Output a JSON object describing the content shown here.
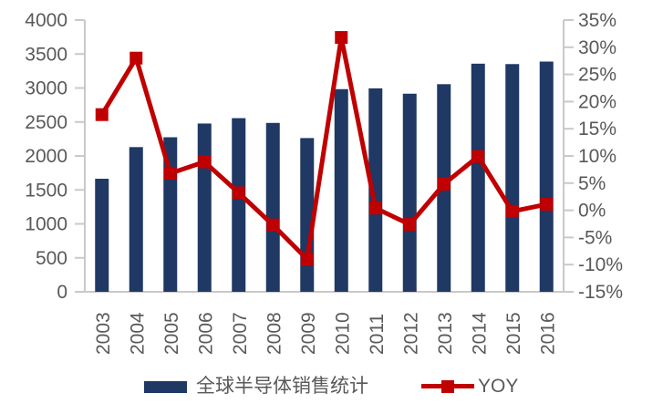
{
  "chart_data": {
    "type": "combo_bar_line",
    "title": "",
    "categories": [
      "2003",
      "2004",
      "2005",
      "2006",
      "2007",
      "2008",
      "2009",
      "2010",
      "2011",
      "2012",
      "2013",
      "2014",
      "2015",
      "2016"
    ],
    "series": [
      {
        "name": "全球半导体销售统计",
        "type": "bar",
        "axis": "left",
        "values": [
          1664,
          2130,
          2275,
          2477,
          2556,
          2486,
          2263,
          2983,
          2995,
          2916,
          3056,
          3358,
          3352,
          3389
        ],
        "color": "#1f3864"
      },
      {
        "name": "YOY",
        "type": "line",
        "axis": "right",
        "marker": "square",
        "values": [
          17.6,
          28.0,
          6.8,
          8.9,
          3.2,
          -2.7,
          -9.0,
          31.8,
          0.4,
          -2.6,
          4.8,
          9.9,
          -0.2,
          1.1
        ],
        "color": "#c00000"
      }
    ],
    "left_axis": {
      "min": 0,
      "max": 4000,
      "step": 500,
      "tick_labels": [
        "0",
        "500",
        "1000",
        "1500",
        "2000",
        "2500",
        "3000",
        "3500",
        "4000"
      ]
    },
    "right_axis": {
      "min": -15,
      "max": 35,
      "step": 5,
      "format": "percent",
      "tick_labels": [
        "-15%",
        "-10%",
        "-5%",
        "0%",
        "5%",
        "10%",
        "15%",
        "20%",
        "25%",
        "30%",
        "35%"
      ]
    },
    "grid": false,
    "legend_position": "bottom",
    "x_label_rotation": -90
  },
  "legend": {
    "bar_label": "全球半导体销售统计",
    "line_label": "YOY"
  },
  "colors": {
    "bar": "#1f3864",
    "line": "#c00000",
    "axis_line": "#c9c9c9",
    "label_text": "#595959"
  }
}
